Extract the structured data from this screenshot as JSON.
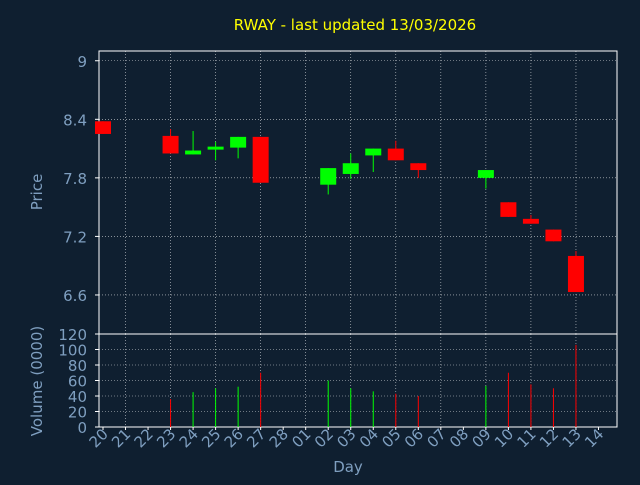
{
  "title": "RWAY - last updated 13/03/2026",
  "colors": {
    "background": "#0f1f30",
    "plot_border": "#ffffff",
    "grid": "#ffffff",
    "title": "#ffff00",
    "axis_text": "#7f9fc0",
    "up": "#00ff00",
    "down": "#ff0000"
  },
  "chart_data": [
    {
      "type": "candlestick",
      "ylabel": "Price",
      "ylim": [
        6.2,
        9.1
      ],
      "yticks": [
        6.6,
        7.2,
        7.8,
        8.4,
        9
      ],
      "ytick_labels": [
        "6.6",
        "7.2",
        "7.8",
        "8.4",
        "9"
      ],
      "grid": true,
      "x_days": [
        "20",
        "21",
        "22",
        "23",
        "24",
        "25",
        "26",
        "27",
        "28",
        "01",
        "02",
        "03",
        "04",
        "05",
        "06",
        "07",
        "08",
        "09",
        "10",
        "11",
        "12",
        "13",
        "14"
      ],
      "candles": [
        {
          "day": "20",
          "open": 8.38,
          "close": 8.25,
          "high": 8.38,
          "low": 8.25
        },
        {
          "day": "23",
          "open": 8.23,
          "close": 8.05,
          "high": 8.3,
          "low": 8.05
        },
        {
          "day": "24",
          "open": 8.04,
          "close": 8.08,
          "high": 8.28,
          "low": 8.04
        },
        {
          "day": "25",
          "open": 8.1,
          "close": 8.12,
          "high": 8.17,
          "low": 7.98
        },
        {
          "day": "26",
          "open": 8.11,
          "close": 8.22,
          "high": 8.22,
          "low": 8.0
        },
        {
          "day": "27",
          "open": 8.22,
          "close": 7.75,
          "high": 8.22,
          "low": 7.75
        },
        {
          "day": "02",
          "open": 7.73,
          "close": 7.9,
          "high": 7.9,
          "low": 7.63
        },
        {
          "day": "03",
          "open": 7.84,
          "close": 7.95,
          "high": 8.05,
          "low": 7.79
        },
        {
          "day": "04",
          "open": 8.03,
          "close": 8.1,
          "high": 8.1,
          "low": 7.86
        },
        {
          "day": "05",
          "open": 8.1,
          "close": 7.98,
          "high": 8.18,
          "low": 7.98
        },
        {
          "day": "06",
          "open": 7.95,
          "close": 7.88,
          "high": 7.95,
          "low": 7.8
        },
        {
          "day": "09",
          "open": 7.8,
          "close": 7.88,
          "high": 7.88,
          "low": 7.69
        },
        {
          "day": "10",
          "open": 7.55,
          "close": 7.4,
          "high": 7.55,
          "low": 7.4
        },
        {
          "day": "11",
          "open": 7.38,
          "close": 7.33,
          "high": 7.42,
          "low": 7.33
        },
        {
          "day": "12",
          "open": 7.27,
          "close": 7.15,
          "high": 7.27,
          "low": 7.15
        },
        {
          "day": "13",
          "open": 7.0,
          "close": 6.63,
          "high": 7.05,
          "low": 6.63
        }
      ]
    },
    {
      "type": "bar",
      "ylabel": "Volume (0000)",
      "xlabel": "Day",
      "ylim": [
        0,
        120
      ],
      "yticks": [
        0,
        20,
        40,
        60,
        80,
        100,
        120
      ],
      "ytick_labels": [
        "0",
        "20",
        "40",
        "60",
        "80",
        "100",
        "120"
      ],
      "grid": true,
      "volumes": [
        {
          "day": "23",
          "value": 36,
          "direction": "down"
        },
        {
          "day": "24",
          "value": 45,
          "direction": "up"
        },
        {
          "day": "25",
          "value": 50,
          "direction": "up"
        },
        {
          "day": "26",
          "value": 52,
          "direction": "up"
        },
        {
          "day": "27",
          "value": 70,
          "direction": "down"
        },
        {
          "day": "02",
          "value": 60,
          "direction": "up"
        },
        {
          "day": "03",
          "value": 50,
          "direction": "up"
        },
        {
          "day": "04",
          "value": 46,
          "direction": "up"
        },
        {
          "day": "05",
          "value": 43,
          "direction": "down"
        },
        {
          "day": "06",
          "value": 40,
          "direction": "down"
        },
        {
          "day": "09",
          "value": 53,
          "direction": "up"
        },
        {
          "day": "10",
          "value": 70,
          "direction": "down"
        },
        {
          "day": "11",
          "value": 55,
          "direction": "down"
        },
        {
          "day": "12",
          "value": 50,
          "direction": "down"
        },
        {
          "day": "13",
          "value": 106,
          "direction": "down"
        }
      ]
    }
  ]
}
